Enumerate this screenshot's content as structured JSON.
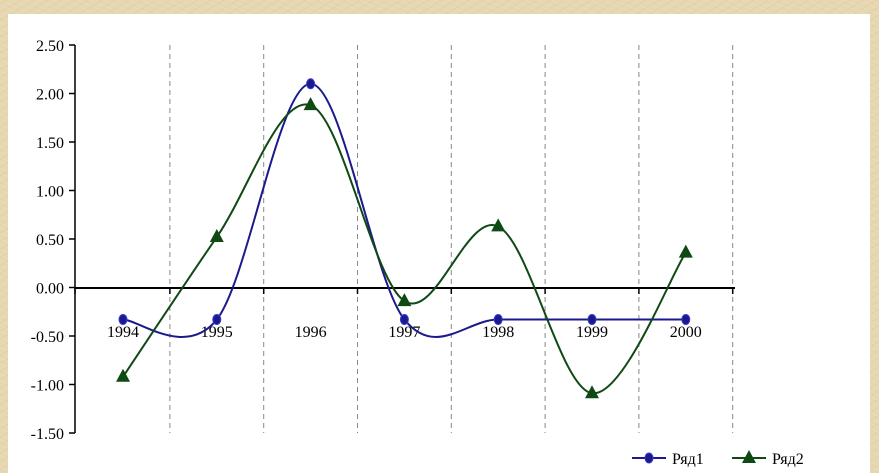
{
  "chart_data": {
    "type": "line",
    "title": "",
    "xlabel": "",
    "ylabel": "",
    "categories": [
      "1994",
      "1995",
      "1996",
      "1997",
      "1998",
      "1999",
      "2000"
    ],
    "ylim": [
      -1.5,
      2.5
    ],
    "yticks": [
      "2.50",
      "2.00",
      "1.50",
      "1.00",
      "0.50",
      "0.00",
      "-0.50",
      "-1.00",
      "-1.50"
    ],
    "grid": "vertical dashed",
    "legend": "bottom-right",
    "series": [
      {
        "name": "Ряд1",
        "color": "#1a1a8c",
        "marker": "diamond",
        "values": [
          -0.33,
          -0.33,
          2.1,
          -0.33,
          -0.33,
          -0.33,
          -0.33
        ]
      },
      {
        "name": "Ряд2",
        "color": "#0f4a14",
        "marker": "triangle",
        "values": [
          -0.92,
          0.52,
          1.88,
          -0.14,
          0.63,
          -1.09,
          0.36
        ]
      }
    ]
  }
}
